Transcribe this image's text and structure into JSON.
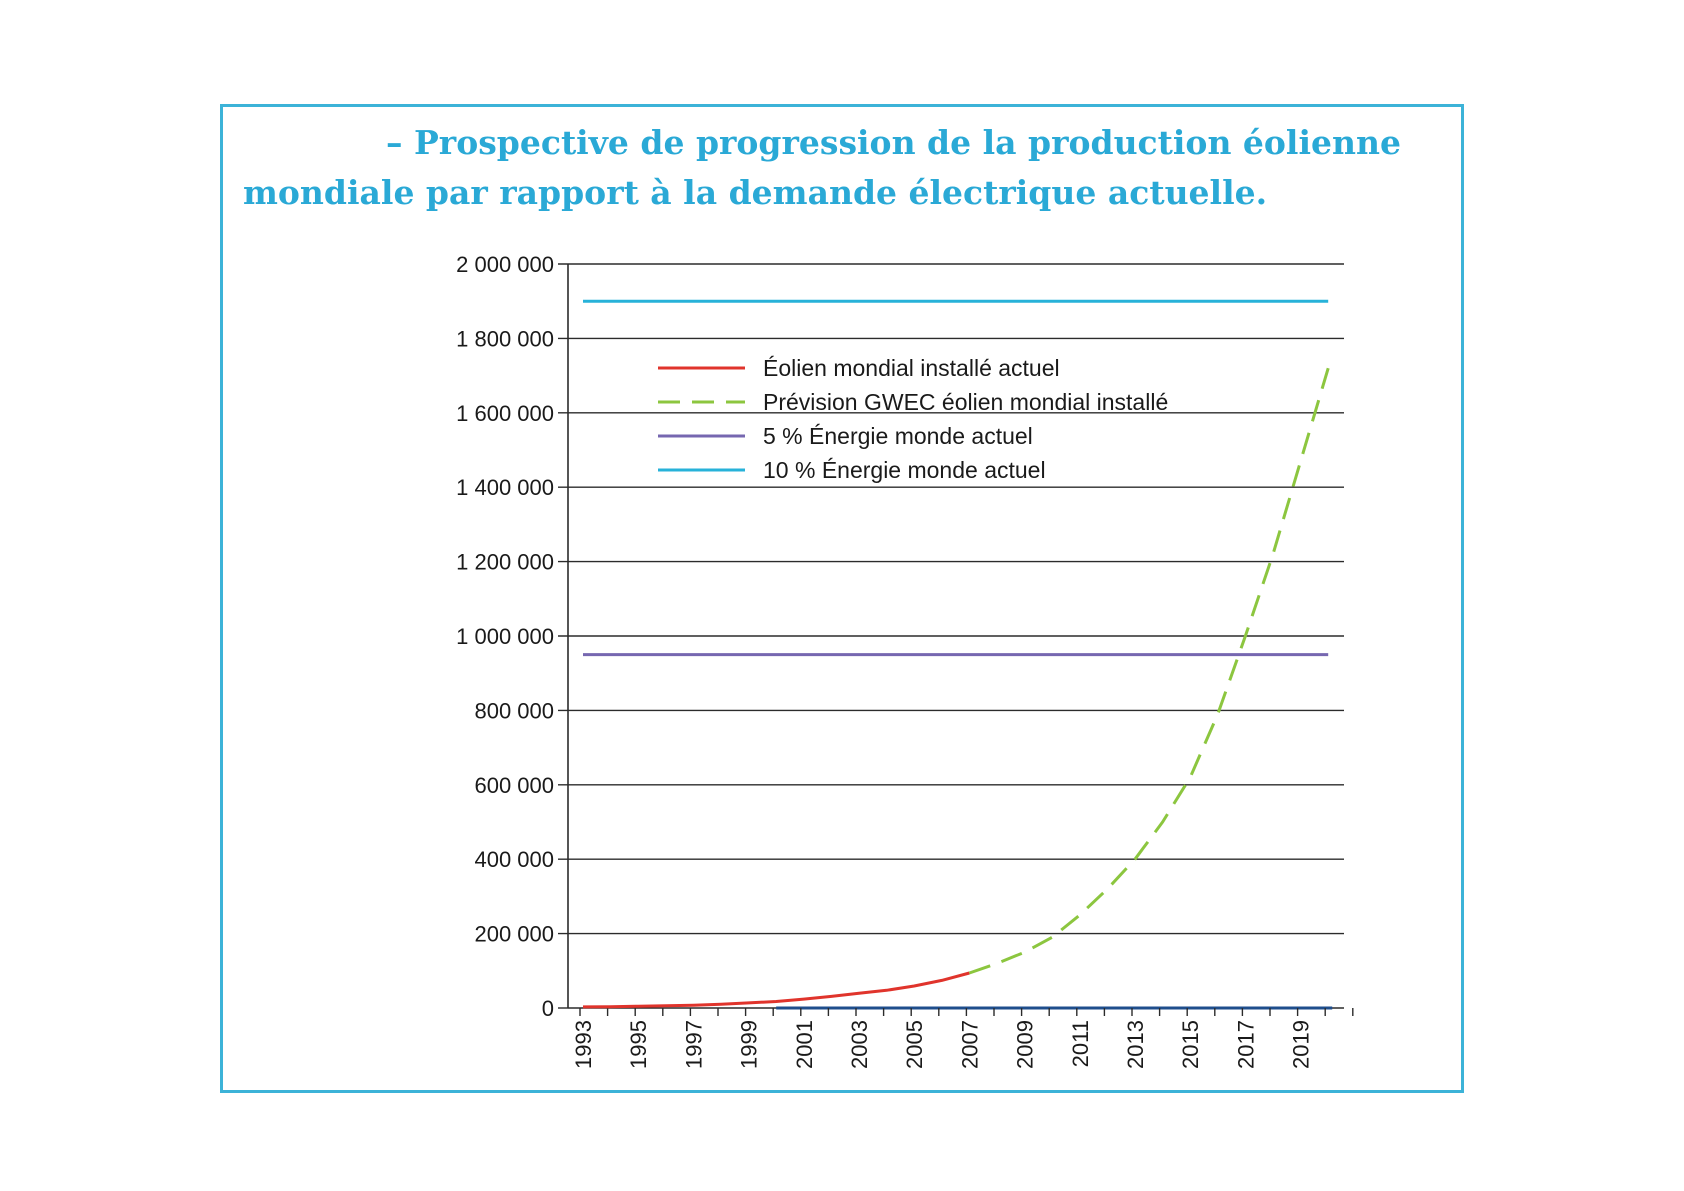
{
  "title": {
    "line1": "– Prospective de progression de la production éolienne",
    "line2": "mondiale par rapport à la demande électrique actuelle."
  },
  "colors": {
    "frame": "#3cb3d8",
    "title": "#2aa9d6",
    "actual": "#e0342c",
    "forecast": "#8cc63f",
    "five_percent": "#7667b0",
    "ten_percent": "#27b2d9",
    "baseline": "#1f4e8c"
  },
  "chart_data": {
    "type": "line",
    "title": "– Prospective de progression de la production éolienne mondiale par rapport à la demande électrique actuelle.",
    "xlabel": "",
    "ylabel": "",
    "x_range": [
      1993,
      2020
    ],
    "ylim": [
      0,
      2000000
    ],
    "y_ticks": [
      0,
      200000,
      400000,
      600000,
      800000,
      1000000,
      1200000,
      1400000,
      1600000,
      1800000,
      2000000
    ],
    "y_tick_labels": [
      "0",
      "200 000",
      "400 000",
      "600 000",
      "800 000",
      "1 000 000",
      "1 200 000",
      "1 400 000",
      "1 600 000",
      "1 800 000",
      "2 000 000"
    ],
    "x_tick_labels": [
      "1993",
      "1995",
      "1997",
      "1999",
      "2001",
      "2003",
      "2005",
      "2007",
      "2009",
      "2011",
      "2013",
      "2015",
      "2017",
      "2019"
    ],
    "x_tick_values": [
      1993,
      1995,
      1997,
      1999,
      2001,
      2003,
      2005,
      2007,
      2009,
      2011,
      2013,
      2015,
      2017,
      2019
    ],
    "grid": true,
    "legend_position": "top-left",
    "series": [
      {
        "name": "Éolien mondial installé actuel",
        "style": "solid",
        "color_key": "actual",
        "x": [
          1993,
          1994,
          1995,
          1996,
          1997,
          1998,
          1999,
          2000,
          2001,
          2002,
          2003,
          2004,
          2005,
          2006,
          2007
        ],
        "y": [
          3000,
          3500,
          4800,
          6100,
          7600,
          10200,
          13600,
          17400,
          24000,
          31100,
          39400,
          47600,
          59100,
          74100,
          94000
        ]
      },
      {
        "name": "Prévision GWEC éolien mondial installé",
        "style": "dashed",
        "color_key": "forecast",
        "x": [
          2007,
          2008,
          2009,
          2010,
          2011,
          2012,
          2013,
          2014,
          2015,
          2016,
          2017,
          2018,
          2019,
          2020
        ],
        "y": [
          94000,
          120000,
          150000,
          190000,
          250000,
          320000,
          400000,
          500000,
          620000,
          790000,
          1000000,
          1220000,
          1470000,
          1720000
        ]
      },
      {
        "name": "5 % Énergie monde actuel",
        "style": "solid",
        "color_key": "five_percent",
        "x": [
          1993,
          2020
        ],
        "y": [
          950000,
          950000
        ]
      },
      {
        "name": "10 % Énergie monde actuel",
        "style": "solid",
        "color_key": "ten_percent",
        "x": [
          1993,
          2020
        ],
        "y": [
          1900000,
          1900000
        ]
      }
    ]
  }
}
